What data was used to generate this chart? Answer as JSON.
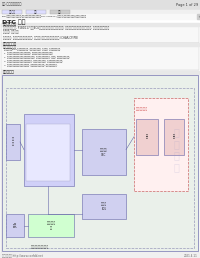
{
  "bg_color": "#f5f5f5",
  "page_bg": "#ffffff",
  "header_text": "行车-卡车维车系统图",
  "header_right": "Page 1 of 29",
  "nav_tabs": [
    "故障概要",
    "概要",
    "返回"
  ],
  "breadcrumb": "2020款汽车/维修维修数据集/插电式充电控制系统（交流电）DTC-P1BD117/维修指南/入电充电控制系统(交流电)故障代码",
  "dtc_label": "DTC 框图",
  "section1_title": "故障代码信息",
  "section2_title": "故障判断程序",
  "section3_title": "相关配线图",
  "footer_left": "畅游汽车学院 http://www.cxzfdd.net",
  "footer_right": "2021.4.11",
  "body_lines": [
    "当以下条件满足时, P1BD117 控制ECU检测到交流充电控制系统中的故障, 将存储一个故障代码并进入保护模式, 同时点亮充电警告灯。",
    "检测条件: 参见 概要",
    "相关数据流: 利用扫描工具的数据流功能, 可以查看 交流充电控制系统的状态 (CHAR-CP/PB)"
  ],
  "section2_items": [
    "故障诊断注意事项",
    "检查充电控制ECU的电源和接地情况, 确保电源电压正常, 接地良好, 无断路或短路故障.",
    "1. 检查交流充电控制系统部件的外观情况, 确认无明显损坏或腐蚀等异常情况.",
    "2. 检查交流充电控制系统线束连接器的连接情况, 确认各连接器连接正确, 无松动, 接触不良等异常情况.",
    "3. 检查交流充电控制系统各部件的工作情况, 确认各部件工作正常, 无异常声响或振动等情况.",
    "4. 使用扫描工具读取故障代码相关数据, 根据数据判断故障原因, 进行针对性的维修."
  ],
  "watermark_color": [
    0.59,
    0.59,
    0.78,
    0.22
  ],
  "watermark_text": "汽\n修\n学\n苑"
}
